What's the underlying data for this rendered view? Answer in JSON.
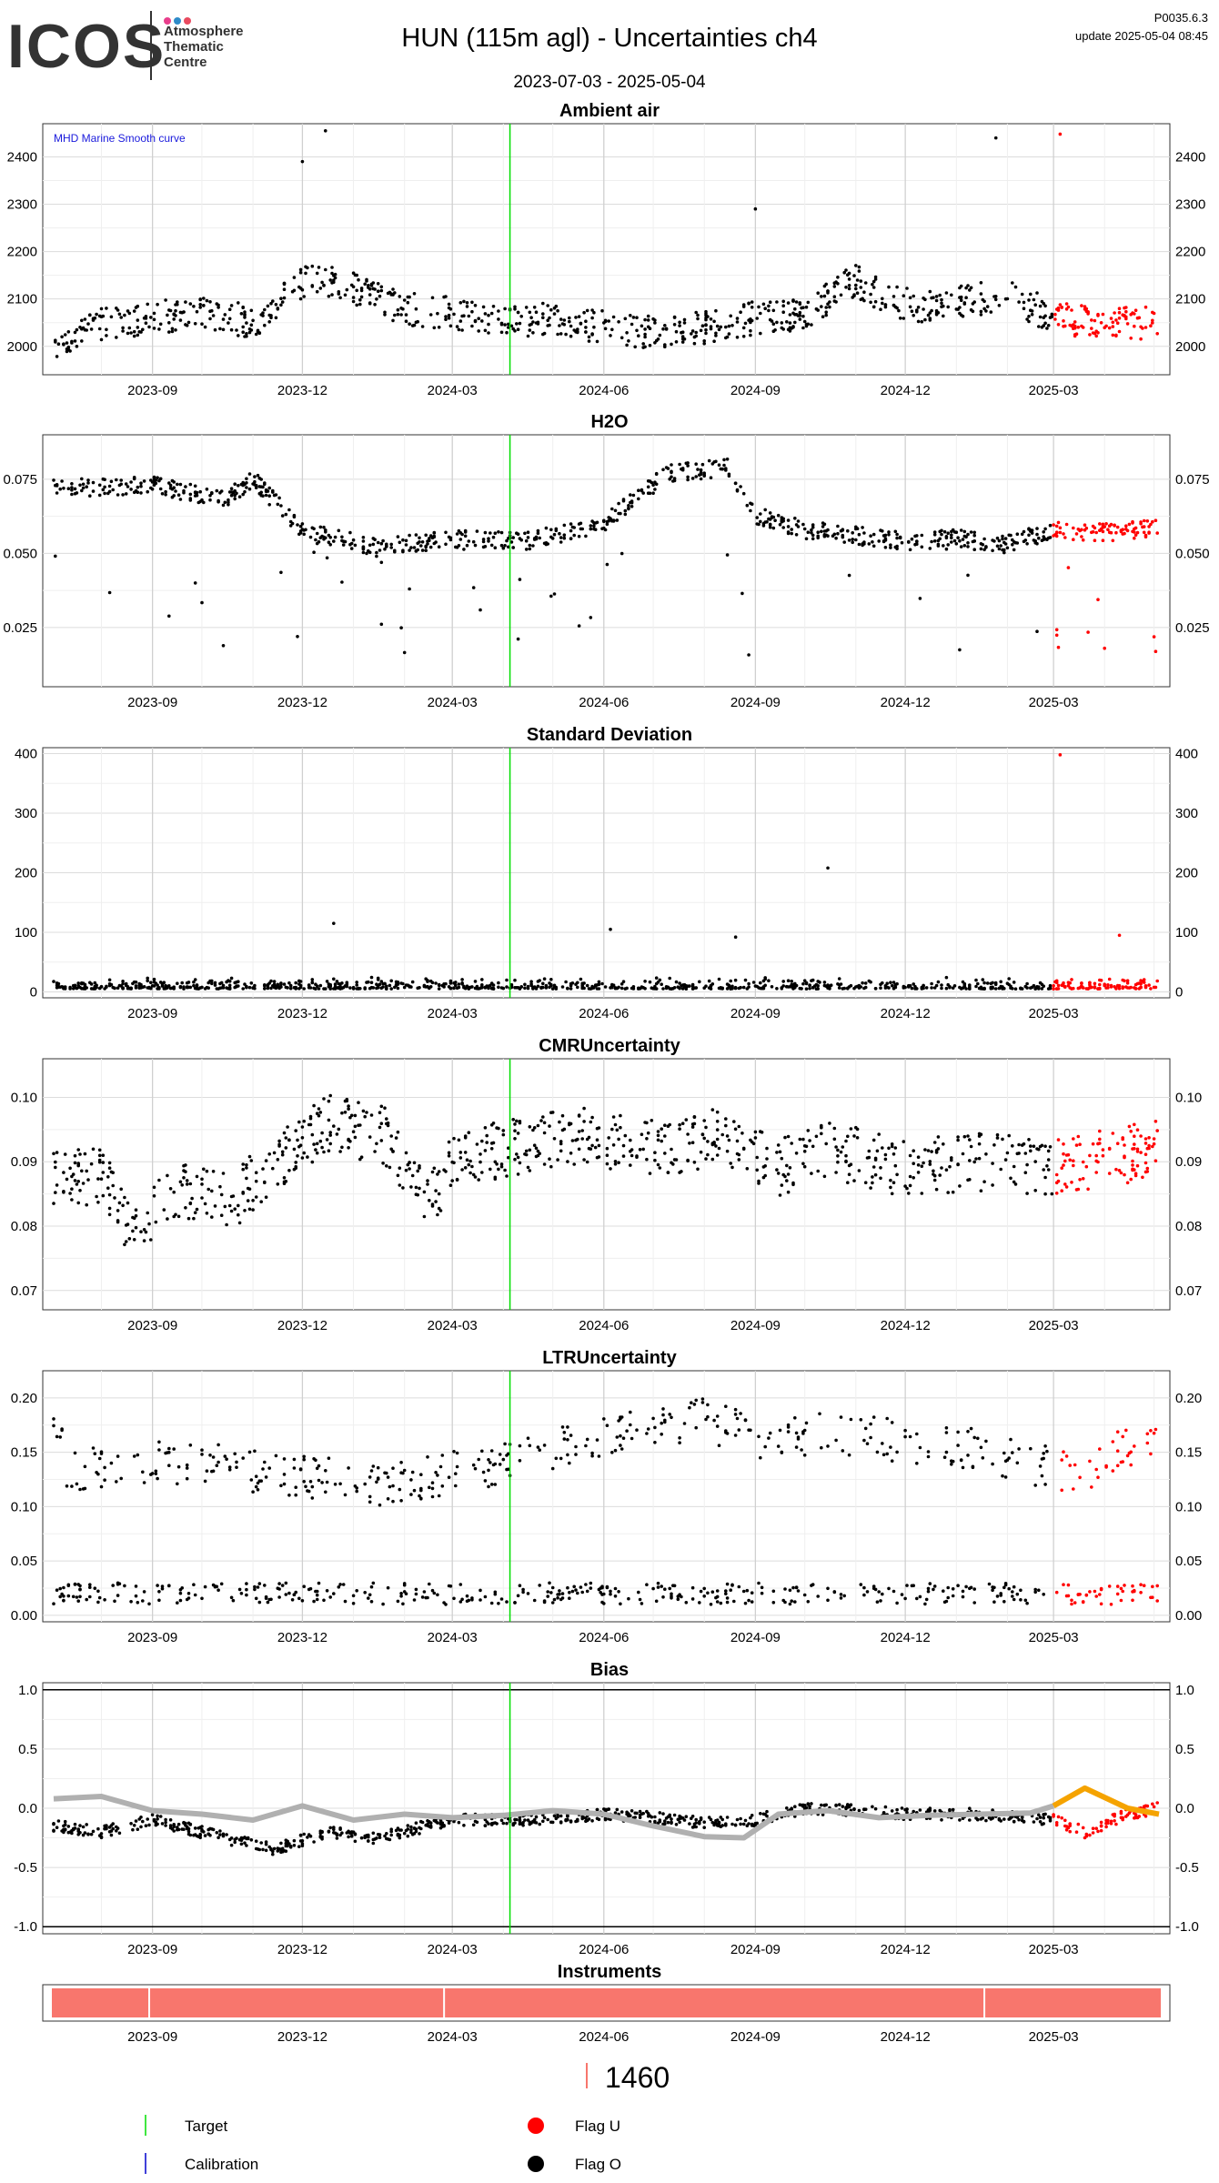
{
  "header": {
    "logo_text": "ICOS",
    "logo_org_lines": [
      "Atmosphere",
      "Thematic",
      "Centre"
    ],
    "logo_dot_colors": [
      "#e83e8c",
      "#2e8bc9",
      "#e84a5f"
    ],
    "title": "HUN  (115m agl) - Uncertainties ch4",
    "date_range": "2023-07-03 - 2025-05-04",
    "version": "P0035.6.3",
    "update": "update  2025-05-04 08:45"
  },
  "colors": {
    "flag_o": "#000000",
    "flag_u": "#ff0000",
    "target": "#00dd00",
    "calibration": "#0000cc",
    "smooth_curve": "#b0b0b0",
    "smooth_curve_recent": "#f5a300",
    "instrument_bar": "#f8766d"
  },
  "chart_data": [
    {
      "id": "ambient",
      "type": "scatter",
      "title": "Ambient air",
      "annotation": "MHD Marine Smooth curve",
      "x_range": [
        "2023-07-03",
        "2025-05-04"
      ],
      "x_ticks": [
        "2023-09",
        "2023-12",
        "2024-03",
        "2024-06",
        "2024-09",
        "2024-12",
        "2025-03"
      ],
      "ylim": [
        1940,
        2470
      ],
      "y_ticks": [
        2000,
        2100,
        2200,
        2300,
        2400
      ],
      "target_line_date": "2024-04-05",
      "flag_u_from": "2025-03-01",
      "series": [
        {
          "x": [
            "2023-07-03",
            "2023-08-01",
            "2023-09-01",
            "2023-10-01",
            "2023-11-01",
            "2023-11-20",
            "2023-12-05",
            "2024-01-01",
            "2024-02-01",
            "2024-03-01",
            "2024-04-01",
            "2024-05-01",
            "2024-06-01",
            "2024-07-01",
            "2024-08-01",
            "2024-09-01",
            "2024-10-01",
            "2024-11-01",
            "2024-11-20",
            "2024-12-15",
            "2025-01-15",
            "2025-02-01",
            "2025-03-01",
            "2025-04-01",
            "2025-05-04"
          ],
          "y": [
            2010,
            2045,
            2060,
            2075,
            2050,
            2100,
            2150,
            2120,
            2080,
            2070,
            2050,
            2060,
            2040,
            2030,
            2040,
            2060,
            2070,
            2140,
            2100,
            2080,
            2100,
            2110,
            2060,
            2050,
            2050
          ],
          "spread": 70
        }
      ]
    },
    {
      "id": "h2o",
      "type": "scatter",
      "title": "H2O",
      "x_range": [
        "2023-07-03",
        "2025-05-04"
      ],
      "x_ticks": [
        "2023-09",
        "2023-12",
        "2024-03",
        "2024-06",
        "2024-09",
        "2024-12",
        "2025-03"
      ],
      "ylim": [
        0.005,
        0.09
      ],
      "y_ticks": [
        0.025,
        0.05,
        0.075
      ],
      "target_line_date": "2024-04-05",
      "flag_u_from": "2025-03-01",
      "series": [
        {
          "x": [
            "2023-07-03",
            "2023-09-01",
            "2023-10-15",
            "2023-11-01",
            "2023-12-01",
            "2024-01-15",
            "2024-03-01",
            "2024-04-15",
            "2024-06-01",
            "2024-07-10",
            "2024-08-15",
            "2024-09-01",
            "2024-10-01",
            "2024-11-01",
            "2024-12-01",
            "2025-01-01",
            "2025-02-01",
            "2025-03-01",
            "2025-04-01",
            "2025-05-04"
          ],
          "y": [
            0.072,
            0.073,
            0.068,
            0.075,
            0.058,
            0.052,
            0.055,
            0.054,
            0.06,
            0.077,
            0.079,
            0.063,
            0.058,
            0.056,
            0.054,
            0.055,
            0.053,
            0.058,
            0.057,
            0.059
          ],
          "spread": 0.006
        }
      ]
    },
    {
      "id": "stddev",
      "type": "scatter",
      "title": "Standard Deviation",
      "x_range": [
        "2023-07-03",
        "2025-05-04"
      ],
      "x_ticks": [
        "2023-09",
        "2023-12",
        "2024-03",
        "2024-06",
        "2024-09",
        "2024-12",
        "2025-03"
      ],
      "ylim": [
        -10,
        410
      ],
      "y_ticks": [
        0,
        100,
        200,
        300,
        400
      ],
      "target_line_date": "2024-04-05",
      "flag_u_from": "2025-03-01",
      "series": [
        {
          "x": [
            "2023-07-03",
            "2025-05-04"
          ],
          "y": [
            5,
            5
          ],
          "spread": 20
        }
      ]
    },
    {
      "id": "cmr",
      "type": "scatter",
      "title": "CMRUncertainty",
      "x_range": [
        "2023-07-03",
        "2025-05-04"
      ],
      "x_ticks": [
        "2023-09",
        "2023-12",
        "2024-03",
        "2024-06",
        "2024-09",
        "2024-12",
        "2025-03"
      ],
      "ylim": [
        0.067,
        0.106
      ],
      "y_ticks": [
        0.07,
        0.08,
        0.09,
        0.1
      ],
      "target_line_date": "2024-04-05",
      "flag_u_from": "2025-03-01",
      "series": [
        {
          "x": [
            "2023-07-03",
            "2023-08-01",
            "2023-08-20",
            "2023-09-15",
            "2023-10-20",
            "2023-11-15",
            "2023-12-15",
            "2024-01-20",
            "2024-02-15",
            "2024-03-01",
            "2024-04-01",
            "2024-05-15",
            "2024-07-01",
            "2024-08-15",
            "2024-09-15",
            "2024-10-15",
            "2024-12-01",
            "2025-01-15",
            "2025-03-01",
            "2025-05-04"
          ],
          "y": [
            0.087,
            0.088,
            0.079,
            0.086,
            0.084,
            0.09,
            0.096,
            0.094,
            0.083,
            0.09,
            0.092,
            0.094,
            0.092,
            0.094,
            0.089,
            0.092,
            0.089,
            0.09,
            0.089,
            0.092
          ],
          "spread": 0.009
        }
      ]
    },
    {
      "id": "ltr",
      "type": "scatter",
      "title": "LTRUncertainty",
      "x_range": [
        "2023-07-03",
        "2025-05-04"
      ],
      "x_ticks": [
        "2023-09",
        "2023-12",
        "2024-03",
        "2024-06",
        "2024-09",
        "2024-12",
        "2025-03"
      ],
      "ylim": [
        -0.006,
        0.225
      ],
      "y_ticks": [
        0.0,
        0.05,
        0.1,
        0.15,
        0.2
      ],
      "target_line_date": "2024-04-05",
      "flag_u_from": "2025-03-01",
      "series": [
        {
          "name_hint": "low",
          "x": [
            "2023-07-03",
            "2025-05-04"
          ],
          "y": [
            0.02,
            0.02
          ],
          "spread": 0.02
        },
        {
          "name_hint": "high",
          "x": [
            "2023-07-10",
            "2023-08-10",
            "2023-10-01",
            "2023-11-15",
            "2024-01-15",
            "2024-04-01",
            "2024-06-20",
            "2024-08-01",
            "2024-09-15",
            "2024-10-15",
            "2025-01-20",
            "2025-03-15",
            "2025-05-01"
          ],
          "y": [
            0.13,
            0.14,
            0.14,
            0.13,
            0.12,
            0.14,
            0.17,
            0.18,
            0.16,
            0.17,
            0.15,
            0.13,
            0.17
          ],
          "spread": 0.04
        }
      ]
    },
    {
      "id": "bias",
      "type": "scatter",
      "title": "Bias",
      "x_range": [
        "2023-07-03",
        "2025-05-04"
      ],
      "x_ticks": [
        "2023-09",
        "2023-12",
        "2024-03",
        "2024-06",
        "2024-09",
        "2024-12",
        "2025-03"
      ],
      "ylim": [
        -1.06,
        1.06
      ],
      "y_ticks": [
        -1.0,
        -0.5,
        0.0,
        0.5,
        1.0
      ],
      "hlines": [
        -1.0,
        1.0
      ],
      "target_line_date": "2024-04-05",
      "flag_u_from": "2025-03-01",
      "series": [
        {
          "x": [
            "2023-07-03",
            "2023-08-01",
            "2023-09-01",
            "2023-10-15",
            "2023-11-15",
            "2023-12-15",
            "2024-01-15",
            "2024-03-01",
            "2024-04-15",
            "2024-06-01",
            "2024-07-01",
            "2024-08-01",
            "2024-09-01",
            "2024-10-01",
            "2024-11-01",
            "2024-12-01",
            "2025-01-15",
            "2025-03-01",
            "2025-03-20",
            "2025-04-15",
            "2025-05-04"
          ],
          "y": [
            -0.15,
            -0.2,
            -0.1,
            -0.25,
            -0.35,
            -0.2,
            -0.25,
            -0.1,
            -0.1,
            -0.05,
            -0.08,
            -0.12,
            -0.1,
            0.0,
            -0.02,
            -0.05,
            -0.05,
            -0.1,
            -0.2,
            -0.05,
            0.0
          ],
          "spread": 0.1
        }
      ],
      "smooth_curve": {
        "x": [
          "2023-07-03",
          "2023-08-01",
          "2023-09-01",
          "2023-10-01",
          "2023-11-01",
          "2023-12-01",
          "2024-01-01",
          "2024-02-01",
          "2024-03-01",
          "2024-04-01",
          "2024-05-01",
          "2024-06-01",
          "2024-07-01",
          "2024-08-01",
          "2024-08-25",
          "2024-09-15",
          "2024-10-15",
          "2024-11-15",
          "2024-12-15",
          "2025-01-15",
          "2025-02-15",
          "2025-03-01",
          "2025-03-20",
          "2025-04-15",
          "2025-05-04"
        ],
        "y": [
          0.08,
          0.1,
          -0.02,
          -0.05,
          -0.1,
          0.02,
          -0.1,
          -0.05,
          -0.08,
          -0.06,
          -0.02,
          -0.05,
          -0.15,
          -0.24,
          -0.25,
          -0.05,
          -0.02,
          -0.08,
          -0.06,
          -0.05,
          -0.04,
          0.02,
          0.17,
          0.0,
          -0.05
        ]
      }
    },
    {
      "id": "instruments",
      "type": "bar",
      "title": "Instruments",
      "x_range": [
        "2023-07-03",
        "2025-05-04"
      ],
      "x_ticks": [
        "2023-09",
        "2023-12",
        "2024-03",
        "2024-06",
        "2024-09",
        "2024-12",
        "2025-03"
      ],
      "segment_breaks": [
        "2023-08-30",
        "2024-02-25",
        "2025-01-18"
      ],
      "legend_value": "1460"
    }
  ],
  "legend": {
    "target": "Target",
    "calibration": "Calibration",
    "flag_u": "Flag U",
    "flag_o": "Flag O"
  }
}
